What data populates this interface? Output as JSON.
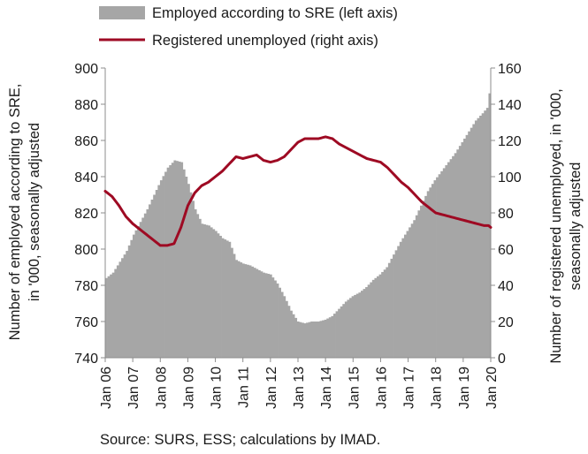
{
  "chart_data": {
    "type": "area+line",
    "xlabel": "",
    "ylabel_left": "Number of employed according to SRE, in '000, seasonally adjusted",
    "ylabel_left_lines": [
      "Number of employed according to SRE,",
      "in '000, seasonally adjusted"
    ],
    "ylabel_right": "Number of registered unemployed, in '000, seasonally adjusted",
    "ylabel_right_lines": [
      "Number of registered unemployed, in '000,",
      "seasonally adjusted"
    ],
    "source": "Source: SURS, ESS; calculations by IMAD.",
    "ylim_left": [
      740,
      900
    ],
    "ylim_right": [
      0,
      160
    ],
    "yticks_left": [
      "740",
      "760",
      "780",
      "800",
      "820",
      "840",
      "860",
      "880",
      "900"
    ],
    "yticks_right": [
      "0",
      "20",
      "40",
      "60",
      "80",
      "100",
      "120",
      "140",
      "160"
    ],
    "xticks": [
      "Jan 06",
      "Jan 07",
      "Jan 08",
      "Jan 09",
      "Jan 10",
      "Jan 11",
      "Jan 12",
      "Jan 13",
      "Jan 14",
      "Jan 15",
      "Jan 16",
      "Jan 17",
      "Jan 18",
      "Jan 19",
      "Jan 20"
    ],
    "legend_position": "top",
    "colors": {
      "area": "#a6a6a6",
      "line": "#9e0a23"
    },
    "series": [
      {
        "name": "Employed according to SRE (left axis)",
        "axis": "left",
        "style": "area",
        "x": [
          "2006-01",
          "2006-04",
          "2006-07",
          "2006-10",
          "2007-01",
          "2007-04",
          "2007-07",
          "2007-10",
          "2008-01",
          "2008-04",
          "2008-07",
          "2008-10",
          "2009-01",
          "2009-04",
          "2009-07",
          "2009-10",
          "2010-01",
          "2010-04",
          "2010-07",
          "2010-10",
          "2011-01",
          "2011-04",
          "2011-07",
          "2011-10",
          "2012-01",
          "2012-04",
          "2012-07",
          "2012-10",
          "2013-01",
          "2013-04",
          "2013-07",
          "2013-10",
          "2014-01",
          "2014-04",
          "2014-07",
          "2014-10",
          "2015-01",
          "2015-04",
          "2015-07",
          "2015-10",
          "2016-01",
          "2016-04",
          "2016-07",
          "2016-10",
          "2017-01",
          "2017-04",
          "2017-07",
          "2017-10",
          "2018-01",
          "2018-04",
          "2018-07",
          "2018-10",
          "2019-01",
          "2019-04",
          "2019-07",
          "2019-10",
          "2019-12",
          "2020-01"
        ],
        "values": [
          784,
          787,
          793,
          799,
          808,
          815,
          822,
          830,
          838,
          845,
          849,
          848,
          836,
          822,
          814,
          813,
          810,
          806,
          804,
          794,
          792,
          791,
          789,
          787,
          786,
          781,
          774,
          766,
          760,
          759,
          760,
          760,
          761,
          763,
          767,
          771,
          774,
          776,
          779,
          783,
          786,
          790,
          797,
          804,
          810,
          816,
          824,
          832,
          838,
          843,
          848,
          853,
          859,
          865,
          871,
          875,
          878,
          886
        ]
      },
      {
        "name": "Registered unemployed (right axis)",
        "axis": "right",
        "style": "line",
        "x": [
          "2006-01",
          "2006-04",
          "2006-07",
          "2006-10",
          "2007-01",
          "2007-04",
          "2007-07",
          "2007-10",
          "2008-01",
          "2008-04",
          "2008-07",
          "2008-10",
          "2009-01",
          "2009-04",
          "2009-07",
          "2009-10",
          "2010-01",
          "2010-04",
          "2010-07",
          "2010-10",
          "2011-01",
          "2011-04",
          "2011-07",
          "2011-10",
          "2012-01",
          "2012-04",
          "2012-07",
          "2012-10",
          "2013-01",
          "2013-04",
          "2013-07",
          "2013-10",
          "2014-01",
          "2014-04",
          "2014-07",
          "2014-10",
          "2015-01",
          "2015-04",
          "2015-07",
          "2015-10",
          "2016-01",
          "2016-04",
          "2016-07",
          "2016-10",
          "2017-01",
          "2017-04",
          "2017-07",
          "2017-10",
          "2018-01",
          "2018-04",
          "2018-07",
          "2018-10",
          "2019-01",
          "2019-04",
          "2019-07",
          "2019-10",
          "2019-12",
          "2020-01"
        ],
        "values": [
          92,
          89,
          84,
          78,
          74,
          71,
          68,
          65,
          62,
          62,
          63,
          72,
          84,
          91,
          95,
          97,
          100,
          103,
          107,
          111,
          110,
          111,
          112,
          109,
          108,
          109,
          111,
          115,
          119,
          121,
          121,
          121,
          122,
          121,
          118,
          116,
          114,
          112,
          110,
          109,
          108,
          105,
          101,
          97,
          94,
          90,
          86,
          83,
          80,
          79,
          78,
          77,
          76,
          75,
          74,
          73,
          73,
          72
        ]
      }
    ]
  }
}
